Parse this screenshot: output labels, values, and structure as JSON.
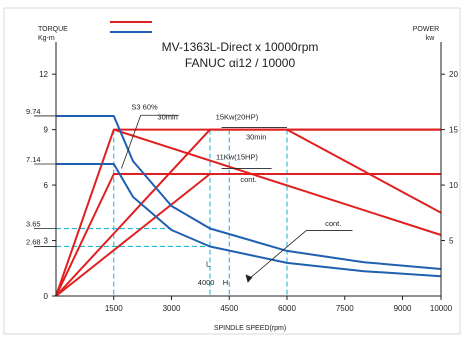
{
  "chart_data": {
    "type": "line",
    "title": "MV-1363L-Direct x 10000rpm",
    "subtitle": "FANUC αi12 / 10000",
    "xlabel": "SPINDLE SPEED(rpm)",
    "ylabel_left": "TORQUE",
    "ylabel_left_unit": "Kg-m",
    "ylabel_right": "POWER",
    "ylabel_right_unit": "kw",
    "xlim": [
      0,
      10000
    ],
    "ylim_left": [
      0,
      13.2
    ],
    "ylim_right": [
      0,
      22
    ],
    "x_ticks": [
      1500,
      3000,
      4500,
      6000,
      7500,
      9000,
      10000
    ],
    "y_left_ticks": [
      0,
      3,
      6,
      9,
      12
    ],
    "y_left_marked": [
      2.68,
      3.65,
      7.14,
      9.74
    ],
    "y_right_ticks": [
      5,
      10,
      15,
      20
    ],
    "legend": [
      {
        "name": "",
        "color": "#e02020"
      },
      {
        "name": "",
        "color": "#2060b0"
      }
    ],
    "series": [
      {
        "name": "power_s3",
        "axis": "right",
        "color": "#e02020",
        "x": [
          0,
          1500,
          6000,
          10000
        ],
        "y": [
          0,
          15,
          15,
          15
        ]
      },
      {
        "name": "power_30min",
        "axis": "right",
        "color": "#e02020",
        "x": [
          0,
          4000,
          10000
        ],
        "y": [
          0,
          15,
          15
        ]
      },
      {
        "name": "power_cont_s3",
        "axis": "right",
        "color": "#e02020",
        "x": [
          0,
          1500,
          10000
        ],
        "y": [
          0,
          11,
          11
        ]
      },
      {
        "name": "power_cont",
        "axis": "right",
        "color": "#e02020",
        "x": [
          0,
          4000,
          10000
        ],
        "y": [
          0,
          11,
          11
        ]
      },
      {
        "name": "power_drop_a",
        "axis": "right",
        "color": "#e02020",
        "x": [
          1500,
          10000
        ],
        "y": [
          15,
          5.5
        ]
      },
      {
        "name": "power_drop_b",
        "axis": "right",
        "color": "#e02020",
        "x": [
          6000,
          10000
        ],
        "y": [
          15,
          7.5
        ]
      },
      {
        "name": "torque_s3",
        "axis": "left",
        "color": "#2060b0",
        "x": [
          0,
          1500,
          2000,
          3000,
          4000,
          6000,
          8000,
          10000
        ],
        "y": [
          9.74,
          9.74,
          7.3,
          4.87,
          3.65,
          2.44,
          1.83,
          1.46
        ]
      },
      {
        "name": "torque_cont",
        "axis": "left",
        "color": "#2060b0",
        "x": [
          0,
          1500,
          2000,
          3000,
          4000,
          6000,
          8000,
          10000
        ],
        "y": [
          7.14,
          7.14,
          5.36,
          3.57,
          2.68,
          1.79,
          1.34,
          1.07
        ]
      }
    ],
    "annotations": [
      {
        "text": "S3 60%",
        "x": 2300,
        "y_right": 16.8
      },
      {
        "text": "30min",
        "x": 2900,
        "y_right": 15.9
      },
      {
        "text": "15Kw(20HP)",
        "x": 4700,
        "y_right": 15.9
      },
      {
        "text": "30min",
        "x": 5200,
        "y_right": 14.1
      },
      {
        "text": "11Kw(15HP)",
        "x": 4700,
        "y_right": 12.3
      },
      {
        "text": "cont.",
        "x": 5000,
        "y_right": 10.3
      },
      {
        "text": "cont.",
        "x": 7200,
        "y_right": 6.3
      },
      {
        "text": "L",
        "x": 3950,
        "y_left": 1.6
      },
      {
        "text": "4000",
        "x": 3900,
        "y_left": 0.6
      },
      {
        "text": "H",
        "x": 4400,
        "y_left": 0.6
      }
    ],
    "grid": false
  }
}
